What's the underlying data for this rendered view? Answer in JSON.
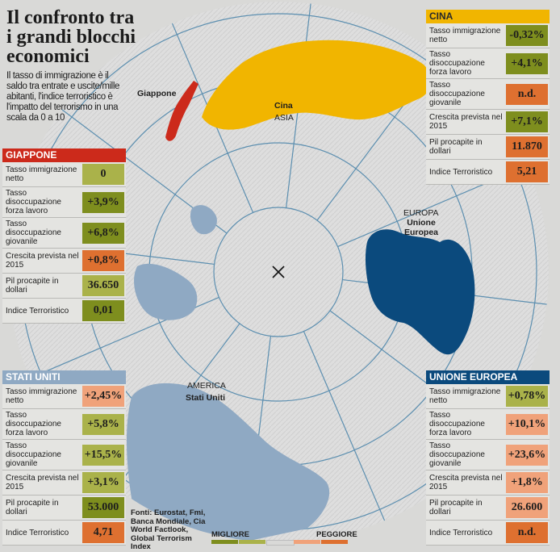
{
  "title": "Il confronto tra i grandi blocchi economici",
  "intro": "Il tasso di immigrazione è il saldo tra entrate e uscite/mille abitanti, l'indice terroristico è l'impatto del terrorismo in una scala da 0 a 10",
  "map_labels": {
    "giappone": "Giappone",
    "cina": "Cina",
    "asia": "ASIA",
    "europa": "EUROPA",
    "unione_europea": "Unione Europea",
    "america": "AMERICA",
    "stati_uniti": "Stati Uniti"
  },
  "colors": {
    "giappone": "#cc2a1b",
    "cina": "#f1b500",
    "stati_uniti": "#8fa9c3",
    "unione_europea": "#0b4a7d",
    "best": "#7e8e1e",
    "good": "#aab24a",
    "neutral": "#d9d9d7",
    "bad": "#f0a27a",
    "worst": "#de7030"
  },
  "panels": {
    "giappone": {
      "header": "GIAPPONE",
      "rows": [
        {
          "label": "Tasso immigrazione netto",
          "value": "0",
          "rating": "good"
        },
        {
          "label": "Tasso disoccupazione forza lavoro",
          "value": "+3,9%",
          "rating": "best"
        },
        {
          "label": "Tasso disoccupazione giovanile",
          "value": "+6,8%",
          "rating": "best"
        },
        {
          "label": "Crescita prevista nel 2015",
          "value": "+0,8%",
          "rating": "worst"
        },
        {
          "label": "Pil procapite in dollari",
          "value": "36.650",
          "rating": "good"
        },
        {
          "label": "Indice Terroristico",
          "value": "0,01",
          "rating": "best"
        }
      ]
    },
    "cina": {
      "header": "CINA",
      "rows": [
        {
          "label": "Tasso immigrazione netto",
          "value": "-0,32%",
          "rating": "best"
        },
        {
          "label": "Tasso disoccupazione forza lavoro",
          "value": "+4,1%",
          "rating": "best"
        },
        {
          "label": "Tasso disoccupazione giovanile",
          "value": "n.d.",
          "rating": "worst"
        },
        {
          "label": "Crescita prevista nel 2015",
          "value": "+7,1%",
          "rating": "best"
        },
        {
          "label": "Pil procapite in dollari",
          "value": "11.870",
          "rating": "worst"
        },
        {
          "label": "Indice Terroristico",
          "value": "5,21",
          "rating": "worst"
        }
      ]
    },
    "stati_uniti": {
      "header": "STATI UNITI",
      "rows": [
        {
          "label": "Tasso immigrazione netto",
          "value": "+2,45%",
          "rating": "bad"
        },
        {
          "label": "Tasso disoccupazione forza lavoro",
          "value": "+5,8%",
          "rating": "good"
        },
        {
          "label": "Tasso disoccupazione giovanile",
          "value": "+15,5%",
          "rating": "good"
        },
        {
          "label": "Crescita prevista nel 2015",
          "value": "+3,1%",
          "rating": "good"
        },
        {
          "label": "Pil procapite in dollari",
          "value": "53.000",
          "rating": "best"
        },
        {
          "label": "Indice Terroristico",
          "value": "4,71",
          "rating": "worst"
        }
      ]
    },
    "unione_europea": {
      "header": "UNIONE EUROPEA",
      "rows": [
        {
          "label": "Tasso immigrazione netto",
          "value": "+0,78%",
          "rating": "good"
        },
        {
          "label": "Tasso disoccupazione forza lavoro",
          "value": "+10,1%",
          "rating": "bad"
        },
        {
          "label": "Tasso disoccupazione giovanile",
          "value": "+23,6%",
          "rating": "bad"
        },
        {
          "label": "Crescita prevista nel 2015",
          "value": "+1,8%",
          "rating": "bad"
        },
        {
          "label": "Pil procapite in dollari",
          "value": "26.600",
          "rating": "bad"
        },
        {
          "label": "Indice Terroristico",
          "value": "n.d.",
          "rating": "worst"
        }
      ]
    }
  },
  "sources": "Fonti: Eurostat, Fmi, Banca Mondiale, Cia World Factlook, Global Terrorism Index",
  "legend": {
    "best_label": "MIGLIORE",
    "worst_label": "PEGGIORE",
    "scale": [
      "best",
      "good",
      "neutral",
      "bad",
      "worst"
    ]
  }
}
